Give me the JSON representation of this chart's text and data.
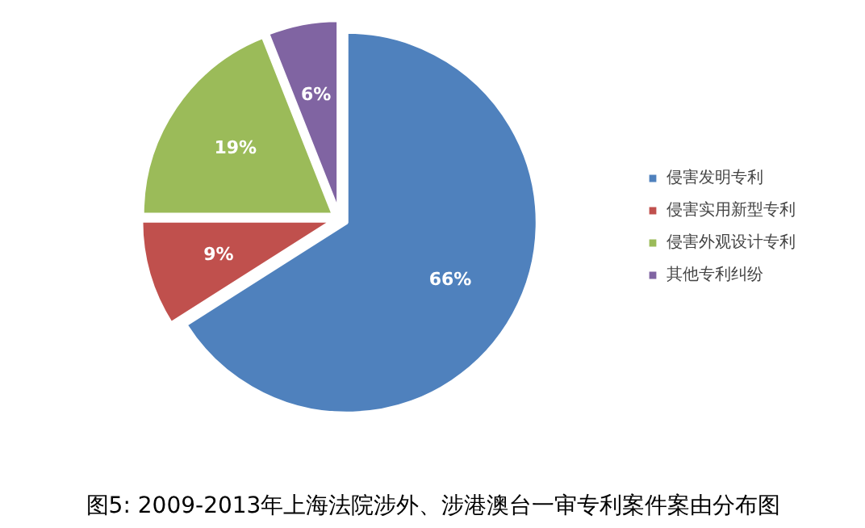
{
  "chart_data": {
    "type": "pie",
    "title": "图5: 2009-2013年上海法院涉外、涉港澳台一审专利案件案由分布图",
    "categories": [
      "侵害发明专利",
      "侵害实用新型专利",
      "侵害外观设计专利",
      "其他专利纠纷"
    ],
    "values": [
      66,
      9,
      19,
      6
    ],
    "colors": [
      "#4f81bd",
      "#c0504d",
      "#9bbb59",
      "#8064a2"
    ],
    "value_labels": [
      "66%",
      "9%",
      "19%",
      "6%"
    ],
    "legend": "right"
  }
}
